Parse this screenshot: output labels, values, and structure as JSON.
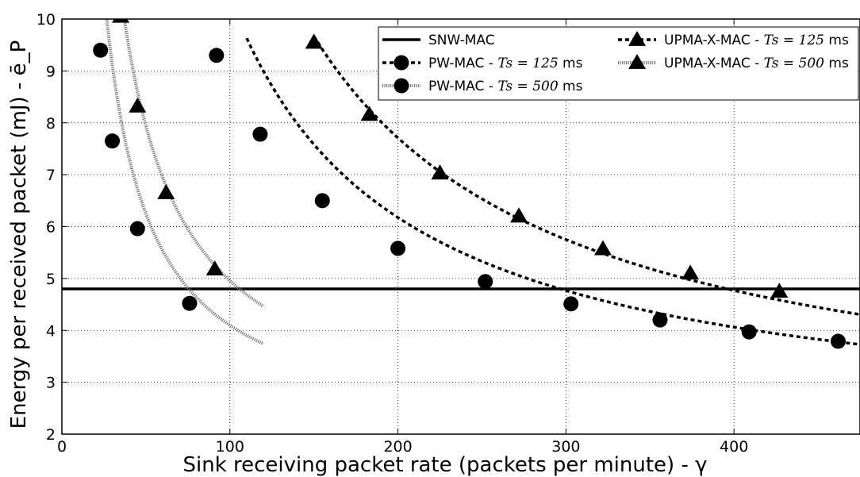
{
  "chart_data": {
    "type": "line",
    "xlabel": "Sink receiving packet rate (packets per minute) - γ",
    "ylabel": "Energy per received packet (mJ) - ē_P",
    "xlim": [
      0,
      475
    ],
    "ylim": [
      2,
      10
    ],
    "x_ticks": [
      "0",
      "100",
      "200",
      "300",
      "400"
    ],
    "y_ticks": [
      "2",
      "3",
      "4",
      "5",
      "6",
      "7",
      "8",
      "9",
      "10"
    ],
    "grid": true,
    "legend_position": "top-right",
    "series": [
      {
        "name": "SNW-MAC",
        "style": "solid",
        "marker": "none",
        "k": 0,
        "constant": 4.8,
        "x_range": [
          0,
          475
        ],
        "points": []
      },
      {
        "name": "PW-MAC - T_s = 125 ms",
        "style": "dashed",
        "marker": "circle",
        "k": 845,
        "constant": 1.95,
        "x_range": [
          110,
          475
        ],
        "points": [
          [
            92,
            9.3
          ],
          [
            118,
            7.78
          ],
          [
            155,
            6.5
          ],
          [
            200,
            5.58
          ],
          [
            252,
            4.94
          ],
          [
            303,
            4.51
          ],
          [
            356,
            4.2
          ],
          [
            409,
            3.97
          ],
          [
            462,
            3.79
          ]
        ]
      },
      {
        "name": "PW-MAC - T_s = 500 ms",
        "style": "dotted",
        "marker": "circle",
        "k": 215,
        "constant": 1.95,
        "x_range": [
          26,
          120
        ],
        "points": [
          [
            23,
            9.4
          ],
          [
            30,
            7.65
          ],
          [
            45,
            5.96
          ],
          [
            76,
            4.52
          ]
        ]
      },
      {
        "name": "UPMA-X-MAC - T_s = 125 ms",
        "style": "dashed",
        "marker": "triangle",
        "k": 1176,
        "constant": 1.83,
        "x_range": [
          150,
          475
        ],
        "points": [
          [
            150,
            9.55
          ],
          [
            183,
            8.16
          ],
          [
            225,
            7.03
          ],
          [
            272,
            6.2
          ],
          [
            322,
            5.57
          ],
          [
            374,
            5.1
          ],
          [
            427,
            4.75
          ]
        ]
      },
      {
        "name": "UPMA-X-MAC - T_s = 500 ms",
        "style": "dotted",
        "marker": "triangle",
        "k": 298,
        "constant": 1.98,
        "x_range": [
          36,
          120
        ],
        "points": [
          [
            35,
            10.05
          ],
          [
            45,
            8.32
          ],
          [
            62,
            6.65
          ],
          [
            91,
            5.18
          ]
        ]
      }
    ],
    "legend": [
      {
        "prefix": "SNW-MAC",
        "math": "",
        "suffix": "",
        "series_index": 0
      },
      {
        "prefix": "PW-MAC - ",
        "math": "Ts = 125",
        "suffix": " ms",
        "series_index": 1
      },
      {
        "prefix": "PW-MAC - ",
        "math": "Ts = 500",
        "suffix": " ms",
        "series_index": 2
      },
      {
        "prefix": "UPMA-X-MAC - ",
        "math": "Ts = 125",
        "suffix": " ms",
        "series_index": 3
      },
      {
        "prefix": "UPMA-X-MAC - ",
        "math": "Ts = 500",
        "suffix": " ms",
        "series_index": 4
      }
    ]
  }
}
